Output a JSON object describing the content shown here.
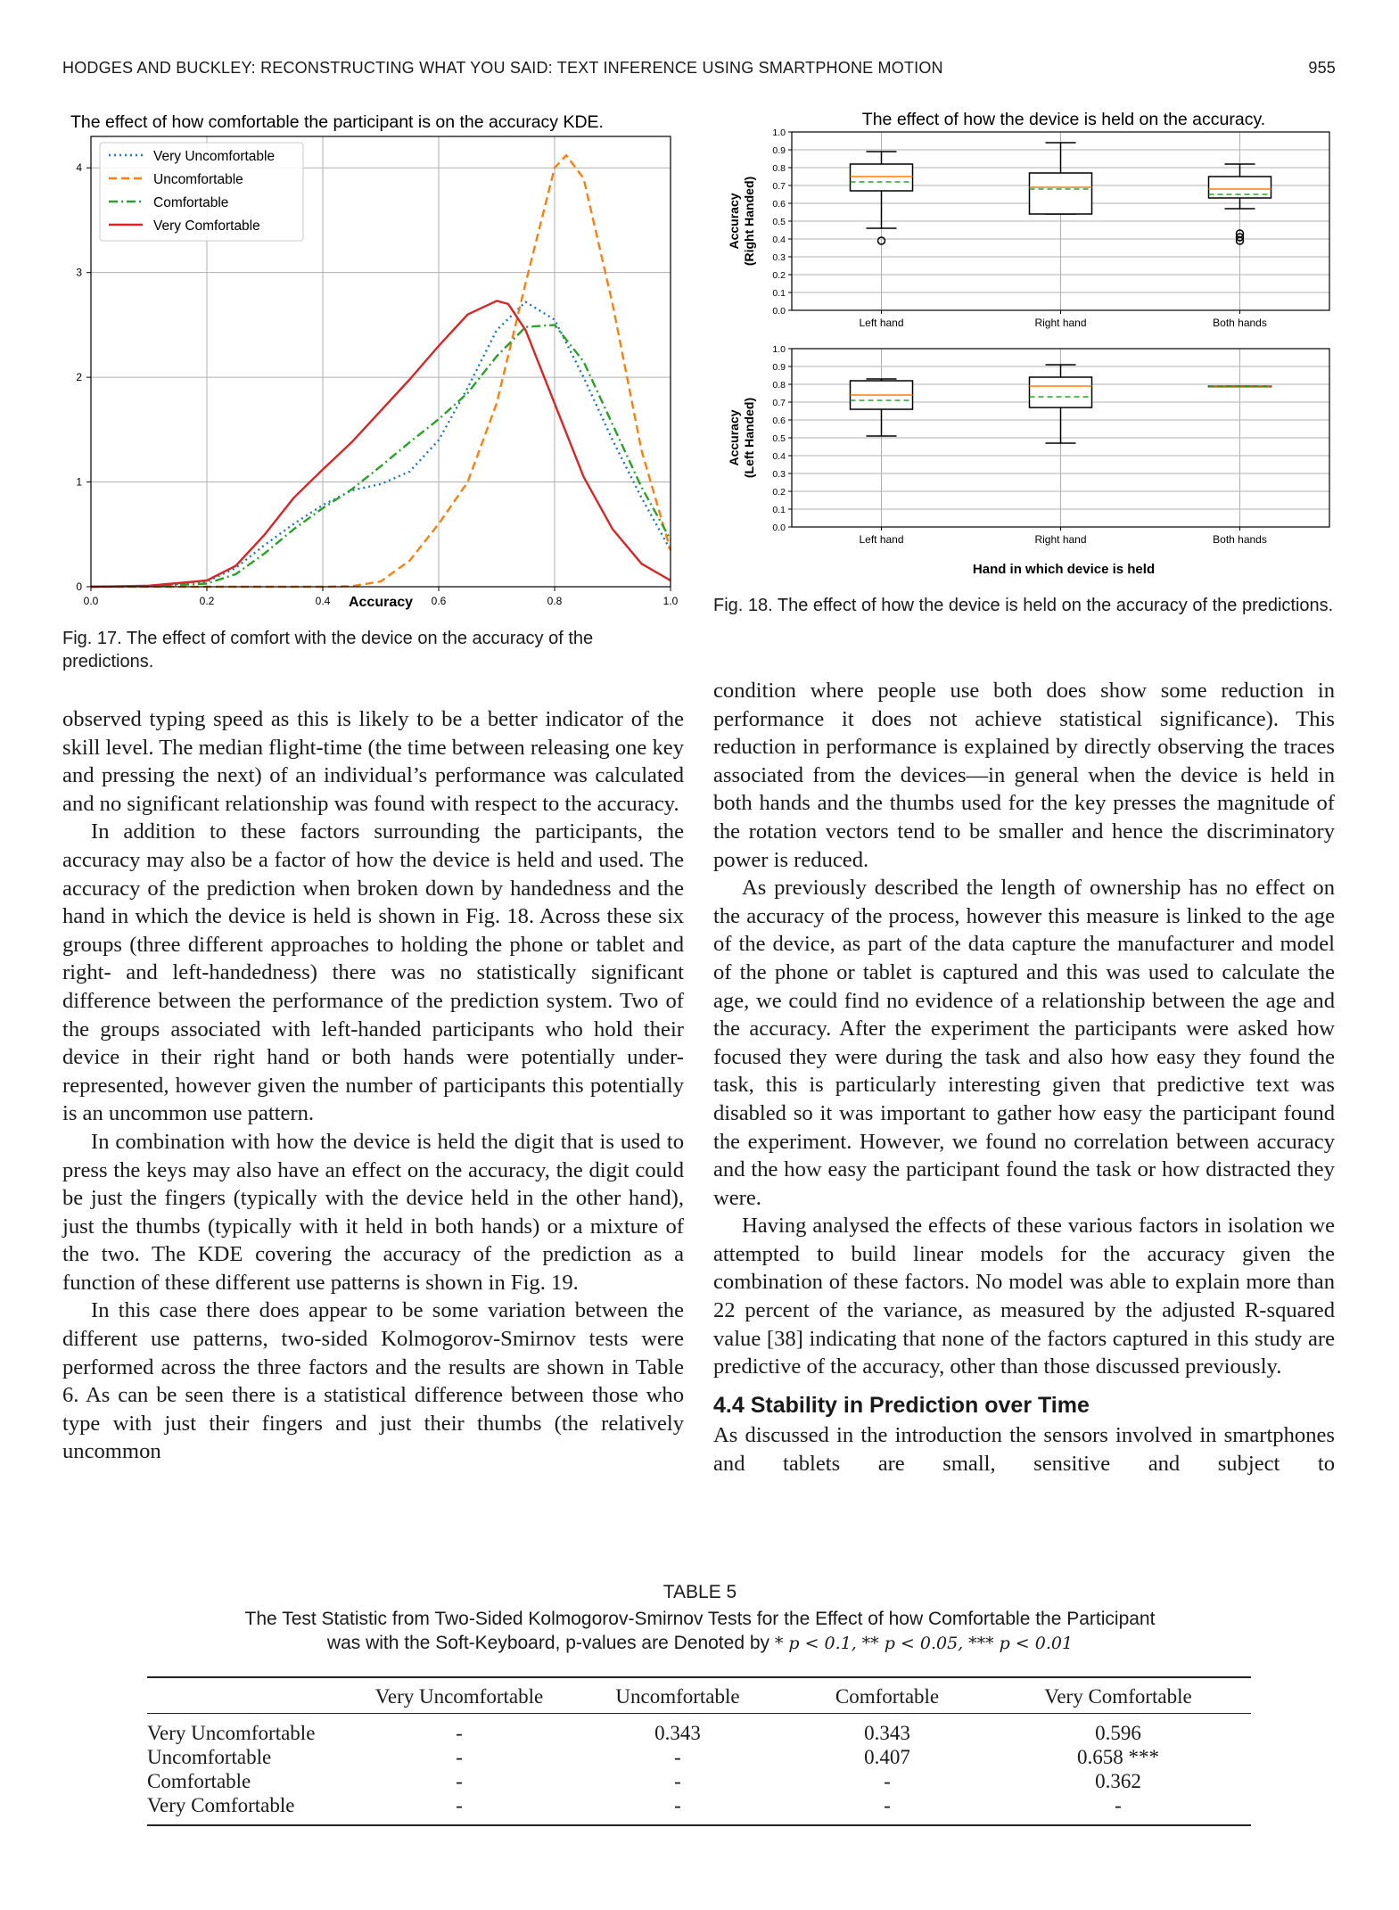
{
  "header": {
    "running_title": "HODGES AND BUCKLEY: RECONSTRUCTING WHAT YOU SAID: TEXT INFERENCE USING SMARTPHONE MOTION",
    "page_number": "955"
  },
  "fig17": {
    "caption": "Fig. 17. The effect of comfort with the device on the accuracy of the predictions."
  },
  "fig18": {
    "caption": "Fig. 18. The effect of how the device is held on the accuracy of the predictions."
  },
  "chart_data": [
    {
      "type": "line",
      "title": "The effect of how comfortable the participant is on the accuracy KDE.",
      "xlabel": "Accuracy",
      "ylabel": "",
      "xlim": [
        0.0,
        1.0
      ],
      "ylim": [
        0,
        4.3
      ],
      "xticks": [
        "0.0",
        "0.2",
        "0.4",
        "0.6",
        "0.8",
        "1.0"
      ],
      "yticks": [
        "0",
        "1",
        "2",
        "3",
        "4"
      ],
      "grid": true,
      "legend_position": "top-left",
      "series": [
        {
          "name": "Very Uncomfortable",
          "color": "#1f77b4",
          "style": "dotted",
          "x": [
            0.0,
            0.1,
            0.2,
            0.25,
            0.3,
            0.35,
            0.4,
            0.45,
            0.5,
            0.55,
            0.6,
            0.65,
            0.7,
            0.75,
            0.8,
            0.85,
            0.9,
            0.95,
            1.0
          ],
          "y": [
            0.0,
            0.005,
            0.05,
            0.18,
            0.4,
            0.6,
            0.78,
            0.92,
            0.98,
            1.1,
            1.4,
            1.9,
            2.45,
            2.72,
            2.55,
            2.0,
            1.4,
            0.85,
            0.35
          ]
        },
        {
          "name": "Uncomfortable",
          "color": "#ff7f0e",
          "style": "dashed",
          "x": [
            0.0,
            0.1,
            0.2,
            0.3,
            0.4,
            0.45,
            0.5,
            0.55,
            0.6,
            0.65,
            0.7,
            0.75,
            0.8,
            0.82,
            0.85,
            0.9,
            0.95,
            1.0
          ],
          "y": [
            0.0,
            0.0,
            0.0,
            0.0,
            0.0,
            0.005,
            0.05,
            0.25,
            0.6,
            1.0,
            1.75,
            2.9,
            4.0,
            4.12,
            3.9,
            2.7,
            1.3,
            0.35
          ]
        },
        {
          "name": "Comfortable",
          "color": "#2ca02c",
          "style": "dashdot",
          "x": [
            0.0,
            0.1,
            0.2,
            0.25,
            0.3,
            0.35,
            0.4,
            0.45,
            0.5,
            0.55,
            0.6,
            0.65,
            0.7,
            0.75,
            0.8,
            0.85,
            0.9,
            0.95,
            1.0
          ],
          "y": [
            0.0,
            0.005,
            0.03,
            0.12,
            0.32,
            0.55,
            0.75,
            0.93,
            1.15,
            1.38,
            1.6,
            1.85,
            2.2,
            2.48,
            2.5,
            2.15,
            1.55,
            0.95,
            0.45
          ]
        },
        {
          "name": "Very Comfortable",
          "color": "#d62728",
          "style": "solid",
          "x": [
            0.0,
            0.1,
            0.2,
            0.25,
            0.3,
            0.35,
            0.4,
            0.45,
            0.5,
            0.55,
            0.6,
            0.65,
            0.7,
            0.72,
            0.75,
            0.8,
            0.85,
            0.9,
            0.95,
            1.0
          ],
          "y": [
            0.0,
            0.01,
            0.06,
            0.2,
            0.5,
            0.85,
            1.12,
            1.38,
            1.68,
            1.98,
            2.3,
            2.6,
            2.73,
            2.7,
            2.45,
            1.75,
            1.05,
            0.55,
            0.22,
            0.06
          ]
        }
      ]
    },
    {
      "type": "box",
      "title": "The effect of how the device is held on the accuracy.",
      "ylabel": "Accuracy\n(Right Handed)",
      "ylim": [
        0.0,
        1.0
      ],
      "yticks": [
        "0.0",
        "0.1",
        "0.2",
        "0.3",
        "0.4",
        "0.5",
        "0.6",
        "0.7",
        "0.8",
        "0.9",
        "1.0"
      ],
      "categories": [
        "Left hand",
        "Right hand",
        "Both hands"
      ],
      "grid": true,
      "boxes": [
        {
          "whislo": 0.46,
          "q1": 0.67,
          "med": 0.75,
          "mean": 0.72,
          "q3": 0.82,
          "whishi": 0.89,
          "fliers": [
            0.39
          ]
        },
        {
          "whislo": 0.54,
          "q1": 0.54,
          "med": 0.69,
          "mean": 0.68,
          "q3": 0.77,
          "whishi": 0.94,
          "fliers": []
        },
        {
          "whislo": 0.57,
          "q1": 0.63,
          "med": 0.68,
          "mean": 0.65,
          "q3": 0.75,
          "whishi": 0.82,
          "fliers": [
            0.39,
            0.41,
            0.43
          ]
        }
      ]
    },
    {
      "type": "box",
      "ylabel": "Accuracy\n(Left Handed)",
      "xlabel": "Hand in which device is held",
      "ylim": [
        0.0,
        1.0
      ],
      "yticks": [
        "0.0",
        "0.1",
        "0.2",
        "0.3",
        "0.4",
        "0.5",
        "0.6",
        "0.7",
        "0.8",
        "0.9",
        "1.0"
      ],
      "categories": [
        "Left hand",
        "Right hand",
        "Both hands"
      ],
      "grid": true,
      "boxes": [
        {
          "whislo": 0.51,
          "q1": 0.66,
          "med": 0.74,
          "mean": 0.71,
          "q3": 0.82,
          "whishi": 0.83,
          "fliers": []
        },
        {
          "whislo": 0.47,
          "q1": 0.67,
          "med": 0.79,
          "mean": 0.73,
          "q3": 0.84,
          "whishi": 0.91,
          "fliers": []
        },
        {
          "whislo": 0.79,
          "q1": 0.79,
          "med": 0.79,
          "mean": 0.79,
          "q3": 0.79,
          "whishi": 0.79,
          "fliers": []
        }
      ]
    }
  ],
  "left_column": {
    "paragraphs": [
      {
        "indent": false,
        "text": "observed typing speed as this is likely to be a better indicator of the skill level. The median flight-time (the time between releasing one key and pressing the next) of an individual’s performance was calculated and no significant relationship was found with respect to the accuracy."
      },
      {
        "indent": true,
        "text": "In addition to these factors surrounding the participants, the accuracy may also be a factor of how the device is held and used. The accuracy of the prediction when broken down by handedness and the hand in which the device is held is shown in Fig. 18. Across these six groups (three different approaches to holding the phone or tablet and right- and left-handedness) there was no statistically significant difference between the performance of the prediction system. Two of the groups associated with left-handed participants who hold their device in their right hand or both hands were potentially under-represented, however given the number of participants this potentially is an uncommon use pattern."
      },
      {
        "indent": true,
        "text": "In combination with how the device is held the digit that is used to press the keys may also have an effect on the accuracy, the digit could be just the fingers (typically with the device held in the other hand), just the thumbs (typically with it held in both hands) or a mixture of the two. The KDE covering the accuracy of the prediction as a function of these different use patterns is shown in Fig. 19."
      },
      {
        "indent": true,
        "text": "In this case there does appear to be some variation between the different use patterns, two-sided Kolmogorov-Smirnov tests were performed across the three factors and the results are shown in Table 6. As can be seen there is a statistical difference between those who type with just their fingers and just their thumbs (the relatively uncommon"
      }
    ]
  },
  "right_column": {
    "paragraphs_top": [
      {
        "indent": false,
        "text": "condition where people use both does show some reduction in performance it does not achieve statistical significance). This reduction in performance is explained by directly observing the traces associated from the devices—in general when the device is held in both hands and the thumbs used for the key presses the magnitude of the rotation vectors tend to be smaller and hence the discriminatory power is reduced."
      },
      {
        "indent": true,
        "text": "As previously described the length of ownership has no effect on the accuracy of the process, however this measure is linked to the age of the device, as part of the data capture the manufacturer and model of the phone or tablet is captured and this was used to calculate the age, we could find no evidence of a relationship between the age and the accuracy. After the experiment the participants were asked how focused they were during the task and also how easy they found the task, this is particularly interesting given that predictive text was disabled so it was important to gather how easy the participant found the experiment. However, we found no correlation between accuracy and the how easy the participant found the task or how distracted they were."
      },
      {
        "indent": true,
        "text": "Having analysed the effects of these various factors in isolation we attempted to build linear models for the accuracy given the combination of these factors. No model was able to explain more than 22 percent of the variance, as measured by the adjusted R-squared value [38] indicating that none of the factors captured in this study are predictive of the accuracy, other than those discussed previously."
      }
    ],
    "section_heading": "4.4 Stability in Prediction over Time",
    "paragraphs_bottom": [
      {
        "indent": false,
        "text": "As discussed in the introduction the sensors involved in smartphones and tablets are small, sensitive and subject to"
      }
    ]
  },
  "table5": {
    "label": "TABLE 5",
    "title_line1": "The Test Statistic from Two-Sided Kolmogorov-Smirnov Tests for the Effect of how Comfortable the Participant",
    "title_line2_prefix": "was with the Soft-Keyboard, p-values are Denoted by",
    "title_line2_p1": "* p < 0.1,",
    "title_line2_p2": "** p < 0.05,",
    "title_line2_p3": "*** p < 0.01",
    "columns": [
      "",
      "Very Uncomfortable",
      "Uncomfortable",
      "Comfortable",
      "Very Comfortable"
    ],
    "rows": [
      [
        "Very Uncomfortable",
        "-",
        "0.343",
        "0.343",
        "0.596"
      ],
      [
        "Uncomfortable",
        "-",
        "-",
        "0.407",
        "0.658 ***"
      ],
      [
        "Comfortable",
        "-",
        "-",
        "-",
        "0.362"
      ],
      [
        "Very Comfortable",
        "-",
        "-",
        "-",
        "-"
      ]
    ]
  }
}
